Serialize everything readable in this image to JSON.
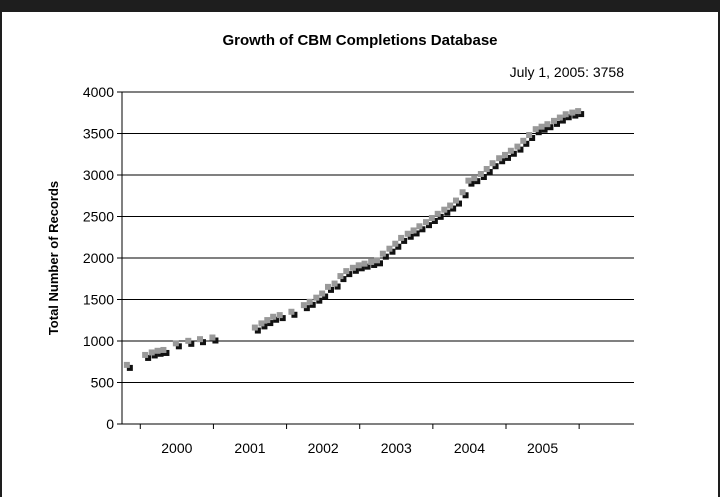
{
  "chart_data": {
    "type": "scatter",
    "title": "Growth of CBM Completions Database",
    "annotation": "July 1, 2005: 3758",
    "ylabel": "Total Number of Records",
    "xlabel": "",
    "ylim": [
      0,
      4000
    ],
    "xlim": [
      1999.25,
      2006.25
    ],
    "y_ticks": [
      0,
      500,
      1000,
      1500,
      2000,
      2500,
      3000,
      3500,
      4000
    ],
    "y_tick_labels": [
      "0",
      "500",
      "1000",
      "1500",
      "2000",
      "2500",
      "3000",
      "3500",
      "4000"
    ],
    "x_tick_labels": [
      "2000",
      "2001",
      "2002",
      "2003",
      "2004",
      "2005"
    ],
    "x_tick_positions": [
      2000.0,
      2001.0,
      2002.0,
      2003.0,
      2004.0,
      2005.0
    ],
    "grid": "horizontal",
    "marker_colors": {
      "front": "#999999",
      "shadow": "#111111"
    },
    "series": [
      {
        "x": [
          1999.33,
          1999.58,
          1999.67,
          1999.75,
          1999.83,
          2000.0,
          2000.17,
          2000.33,
          2000.5,
          2001.08,
          2001.17,
          2001.25,
          2001.33,
          2001.42,
          2001.58,
          2001.75,
          2001.83,
          2001.92,
          2002.0,
          2002.08,
          2002.17,
          2002.25,
          2002.33,
          2002.42,
          2002.5,
          2002.58,
          2002.67,
          2002.75,
          2002.83,
          2002.92,
          2003.0,
          2003.08,
          2003.17,
          2003.25,
          2003.33,
          2003.42,
          2003.5,
          2003.58,
          2003.67,
          2003.75,
          2003.83,
          2003.92,
          2004.0,
          2004.08,
          2004.17,
          2004.25,
          2004.33,
          2004.42,
          2004.5,
          2004.58,
          2004.67,
          2004.75,
          2004.83,
          2004.92,
          2005.0,
          2005.08,
          2005.17,
          2005.25,
          2005.33,
          2005.42,
          2005.5
        ],
        "values": [
          700,
          820,
          850,
          870,
          880,
          960,
          990,
          1010,
          1030,
          1150,
          1200,
          1240,
          1280,
          1300,
          1340,
          1420,
          1460,
          1510,
          1560,
          1640,
          1680,
          1770,
          1830,
          1870,
          1900,
          1920,
          1940,
          1960,
          2040,
          2100,
          2160,
          2230,
          2280,
          2320,
          2370,
          2420,
          2470,
          2520,
          2570,
          2620,
          2680,
          2780,
          2920,
          2950,
          3000,
          3060,
          3130,
          3190,
          3230,
          3280,
          3330,
          3400,
          3470,
          3540,
          3570,
          3600,
          3640,
          3680,
          3720,
          3740,
          3758
        ]
      }
    ]
  }
}
